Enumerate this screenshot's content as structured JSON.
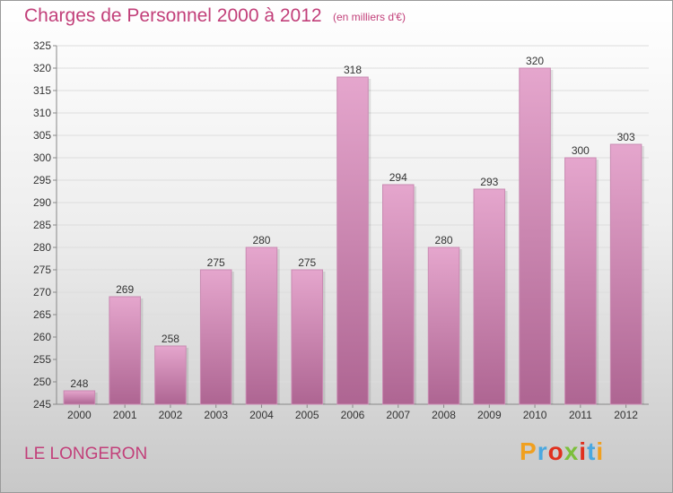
{
  "title": "Charges de Personnel 2000 à 2012",
  "unit_note": "(en milliers d'€)",
  "town": "LE LONGERON",
  "logo": {
    "text": "Proxiti",
    "letter_colors": [
      "#f0a020",
      "#4aa8e0",
      "#e0301e",
      "#7cbf3c",
      "#e0301e",
      "#4aa8e0",
      "#f0a020"
    ]
  },
  "colors": {
    "title": "#c2407a",
    "bar_top": "#e5a6cd",
    "bar_bottom": "#ae6592"
  },
  "chart_data": {
    "type": "bar",
    "categories": [
      "2000",
      "2001",
      "2002",
      "2003",
      "2004",
      "2005",
      "2006",
      "2007",
      "2008",
      "2009",
      "2010",
      "2011",
      "2012"
    ],
    "values": [
      248,
      269,
      258,
      275,
      280,
      275,
      318,
      294,
      280,
      293,
      320,
      300,
      303
    ],
    "title": "Charges de Personnel 2000 à 2012",
    "xlabel": "",
    "ylabel": "",
    "ylim": [
      245,
      325
    ],
    "yticks": [
      245,
      250,
      255,
      260,
      265,
      270,
      275,
      280,
      285,
      290,
      295,
      300,
      305,
      310,
      315,
      320,
      325
    ],
    "grid": true,
    "data_labels": true
  }
}
